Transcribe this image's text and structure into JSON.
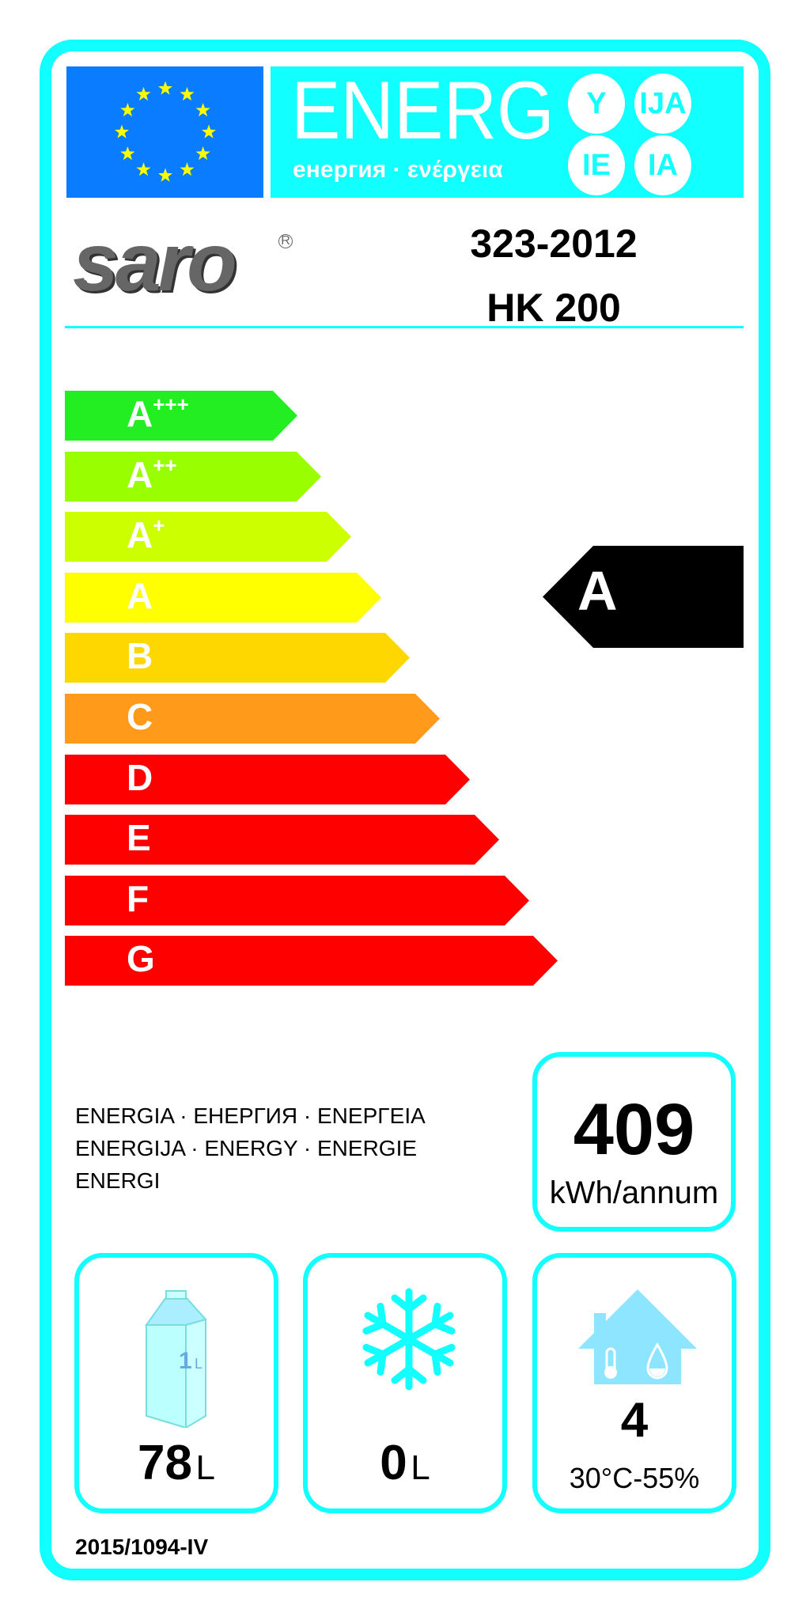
{
  "header": {
    "energy_word": "ENERG",
    "subtitle": "енергия · ενέργεια",
    "suffixes": [
      "Y",
      "IJA",
      "IE",
      "IA"
    ],
    "flag_color": "#0a7cff",
    "header_color": "#1ff"
  },
  "supplier": {
    "logo_text": "saro",
    "reg_mark": "R",
    "model_code": "323-2012",
    "model_name": "HK 200"
  },
  "scale": {
    "classes": [
      {
        "letter": "A",
        "sup": "+++",
        "color": "#22ee22"
      },
      {
        "letter": "A",
        "sup": "++",
        "color": "#99ff00"
      },
      {
        "letter": "A",
        "sup": "+",
        "color": "#ccff00"
      },
      {
        "letter": "A",
        "sup": "",
        "color": "#ffff00"
      },
      {
        "letter": "B",
        "sup": "",
        "color": "#ffd700"
      },
      {
        "letter": "C",
        "sup": "",
        "color": "#ff9a1a"
      },
      {
        "letter": "D",
        "sup": "",
        "color": "#ff0000"
      },
      {
        "letter": "E",
        "sup": "",
        "color": "#ff0000"
      },
      {
        "letter": "F",
        "sup": "",
        "color": "#ff0000"
      },
      {
        "letter": "G",
        "sup": "",
        "color": "#ff0000"
      }
    ],
    "rating": "A"
  },
  "energy_lines": [
    "ENERGIA · ЕНЕРГИЯ · ΕΝΕΡΓΕΙΑ",
    "ENERGIJA · ENERGY · ENERGIE",
    "ENERGI"
  ],
  "consumption": {
    "value": "409",
    "unit": "kWh/annum"
  },
  "fresh": {
    "icon": "milk-carton-icon",
    "carton_label": "1",
    "carton_unit": "L",
    "value": "78",
    "unit": "L"
  },
  "frozen": {
    "icon": "snowflake-icon",
    "value": "0",
    "unit": "L"
  },
  "climate": {
    "icon": "house-climate-icon",
    "value": "4",
    "condition": "30°C-55%"
  },
  "regulation": "2015/1094-IV"
}
